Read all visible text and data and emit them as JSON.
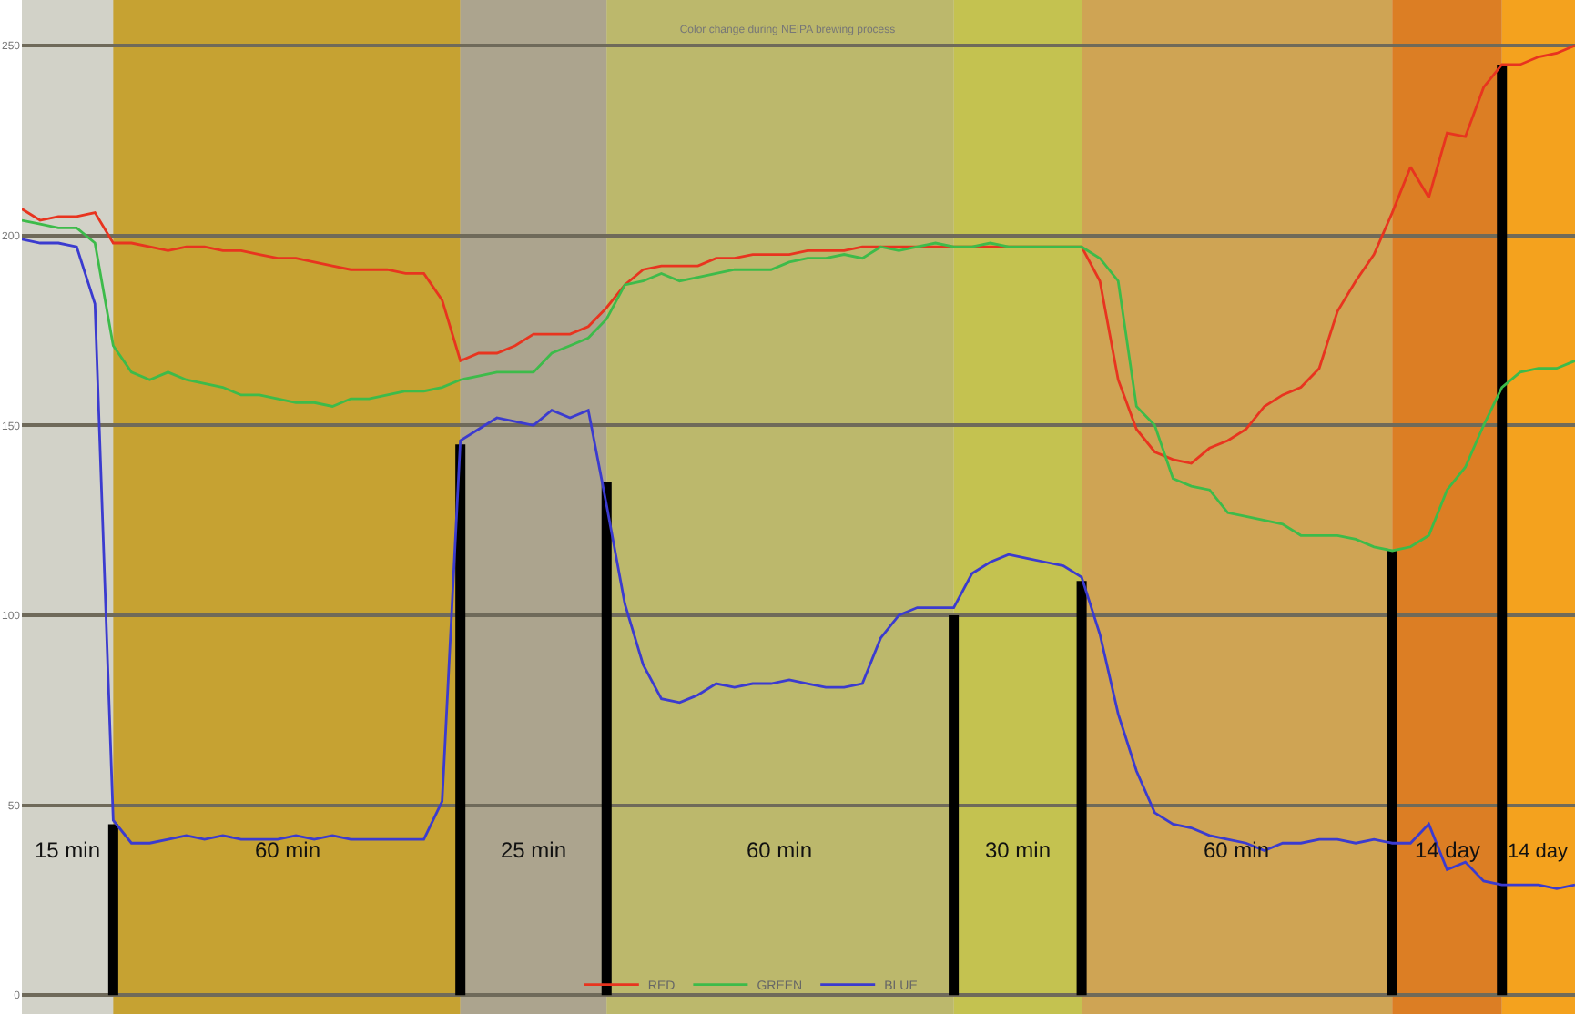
{
  "chart_data": {
    "type": "line",
    "title": "Color change during NEIPA brewing process",
    "categories": [
      null,
      null,
      null,
      null,
      null,
      null,
      null,
      null,
      null,
      null,
      null,
      null,
      null,
      null,
      null,
      null,
      null,
      null,
      null,
      null,
      null,
      null,
      null,
      null,
      null,
      null,
      null,
      null,
      null,
      null,
      null,
      null,
      null,
      null,
      null,
      null,
      null,
      null,
      null,
      null,
      null,
      null,
      null,
      null,
      null,
      null,
      null,
      null,
      null,
      null,
      null,
      null,
      null,
      null,
      null,
      null,
      null,
      null,
      null,
      null,
      null,
      null,
      null,
      null,
      null,
      null,
      null,
      null,
      null,
      null,
      null,
      null,
      null,
      null,
      null,
      null,
      null,
      null,
      null,
      null,
      null,
      null,
      null,
      null,
      null,
      null
    ],
    "series": [
      {
        "name": "RED",
        "color": "#e8341f",
        "values": [
          207,
          204,
          205,
          205,
          206,
          198,
          198,
          197,
          196,
          197,
          197,
          196,
          196,
          195,
          194,
          194,
          193,
          192,
          191,
          191,
          191,
          190,
          190,
          183,
          167,
          169,
          169,
          171,
          174,
          174,
          174,
          176,
          181,
          187,
          191,
          192,
          192,
          192,
          194,
          194,
          195,
          195,
          195,
          196,
          196,
          196,
          197,
          197,
          197,
          197,
          197,
          197,
          197,
          197,
          197,
          197,
          197,
          197,
          197,
          188,
          162,
          149,
          143,
          141,
          140,
          144,
          146,
          149,
          155,
          158,
          160,
          165,
          180,
          188,
          195,
          206,
          218,
          210,
          227,
          226,
          239,
          245,
          245,
          247,
          248,
          250
        ]
      },
      {
        "name": "GREEN",
        "color": "#3dbb4a",
        "values": [
          204,
          203,
          202,
          202,
          198,
          171,
          164,
          162,
          164,
          162,
          161,
          160,
          158,
          158,
          157,
          156,
          156,
          155,
          157,
          157,
          158,
          159,
          159,
          160,
          162,
          163,
          164,
          164,
          164,
          169,
          171,
          173,
          178,
          187,
          188,
          190,
          188,
          189,
          190,
          191,
          191,
          191,
          193,
          194,
          194,
          195,
          194,
          197,
          196,
          197,
          198,
          197,
          197,
          198,
          197,
          197,
          197,
          197,
          197,
          194,
          188,
          155,
          150,
          136,
          134,
          133,
          127,
          126,
          125,
          124,
          121,
          121,
          121,
          120,
          118,
          117,
          118,
          121,
          133,
          139,
          150,
          160,
          164,
          165,
          165,
          167
        ]
      },
      {
        "name": "BLUE",
        "color": "#3b3bcf",
        "values": [
          199,
          198,
          198,
          197,
          182,
          46,
          40,
          40,
          41,
          42,
          41,
          42,
          41,
          41,
          41,
          42,
          41,
          42,
          41,
          41,
          41,
          41,
          41,
          51,
          146,
          149,
          152,
          151,
          150,
          154,
          152,
          154,
          129,
          103,
          87,
          78,
          77,
          79,
          82,
          81,
          82,
          82,
          83,
          82,
          81,
          81,
          82,
          94,
          100,
          102,
          102,
          102,
          111,
          114,
          116,
          115,
          114,
          113,
          110,
          95,
          74,
          59,
          48,
          45,
          44,
          42,
          41,
          40,
          38,
          40,
          40,
          41,
          41,
          40,
          41,
          40,
          40,
          45,
          33,
          35,
          30,
          29,
          29,
          29,
          28,
          29
        ]
      },
      {
        "type": "bar",
        "color": "#000000",
        "values": [
          null,
          null,
          null,
          null,
          null,
          45,
          null,
          null,
          null,
          null,
          null,
          null,
          null,
          null,
          null,
          null,
          null,
          null,
          null,
          null,
          null,
          null,
          null,
          null,
          145,
          null,
          null,
          null,
          null,
          null,
          null,
          null,
          135,
          null,
          null,
          null,
          null,
          null,
          null,
          null,
          null,
          null,
          null,
          null,
          null,
          null,
          null,
          null,
          null,
          null,
          null,
          100,
          null,
          null,
          null,
          null,
          null,
          null,
          109,
          null,
          null,
          null,
          null,
          null,
          null,
          null,
          null,
          null,
          null,
          null,
          null,
          null,
          null,
          null,
          null,
          117,
          null,
          null,
          null,
          null,
          null,
          245,
          null,
          null,
          null,
          null
        ]
      }
    ],
    "annotations": [
      "15 min",
      "60 min",
      "25 min",
      "60 min",
      "30 min",
      "60 min",
      "14 day",
      "14 day"
    ],
    "ylim": [
      -5,
      262
    ],
    "yticks": [
      0,
      50,
      100,
      150,
      200,
      250
    ],
    "grid": "y",
    "legend": "bottom",
    "marker": "none",
    "line_style": "solid"
  }
}
